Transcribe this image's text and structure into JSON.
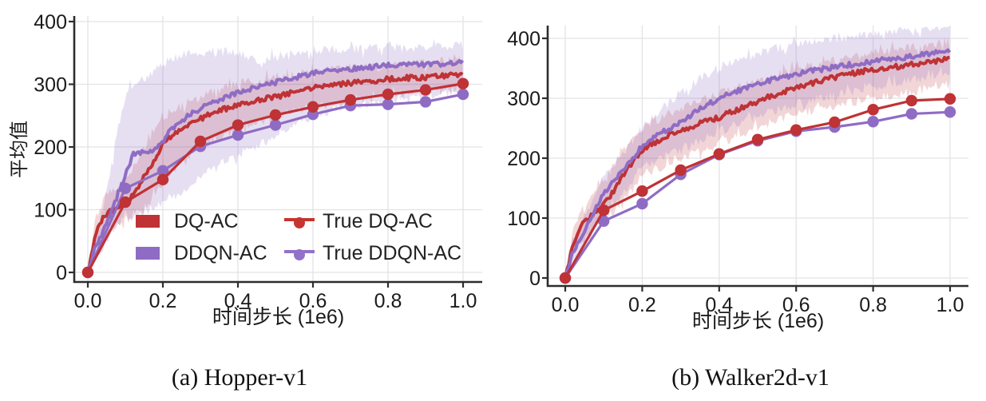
{
  "colors": {
    "red": "#bf3235",
    "purple": "#8f6cc4",
    "red_band_opacity": 0.2,
    "purple_band_opacity": 0.22,
    "grid": "#e3e3e7",
    "spine": "#2d2d2d",
    "text": "#1b1b1b"
  },
  "legend": {
    "entries": [
      {
        "label": "DQ-AC",
        "swatch": "patch",
        "color": "#bf3235"
      },
      {
        "label": "DDQN-AC",
        "swatch": "patch",
        "color": "#8f6cc4"
      },
      {
        "label": "True DQ-AC",
        "swatch": "line-marker",
        "color": "#c63430"
      },
      {
        "label": "True DDQN-AC",
        "swatch": "line-marker",
        "color": "#9271c9"
      }
    ]
  },
  "chart_data": [
    {
      "type": "line",
      "caption": "(a) Hopper-v1",
      "xlabel": "时间步长 (1e6)",
      "ylabel": "平均值",
      "xtick_labels": [
        "0.0",
        "0.2",
        "0.4",
        "0.6",
        "0.8",
        "1.0"
      ],
      "xtick_values": [
        0.0,
        0.2,
        0.4,
        0.6,
        0.8,
        1.0
      ],
      "ytick_values": [
        0,
        100,
        200,
        300,
        400
      ],
      "xlim": [
        -0.036,
        1.051
      ],
      "ylim": [
        -15,
        409
      ],
      "grid": true,
      "legend_position": "lower-right-inside",
      "series": [
        {
          "name": "DQ-AC",
          "kind": "band",
          "color_key": "red",
          "x": [
            0,
            0.02,
            0.04,
            0.06,
            0.08,
            0.1,
            0.12,
            0.15,
            0.17,
            0.2,
            0.22,
            0.25,
            0.3,
            0.35,
            0.4,
            0.45,
            0.5,
            0.55,
            0.6,
            0.65,
            0.7,
            0.75,
            0.8,
            0.85,
            0.9,
            0.95,
            1.0
          ],
          "mean": [
            0,
            60,
            88,
            97,
            103,
            112,
            122,
            152,
            172,
            205,
            216,
            228,
            245,
            258,
            267,
            274,
            280,
            287,
            294,
            298,
            302,
            305,
            308,
            310,
            311,
            313,
            316
          ],
          "upper": [
            3,
            85,
            115,
            128,
            138,
            150,
            165,
            195,
            218,
            246,
            257,
            266,
            280,
            292,
            300,
            306,
            311,
            316,
            320,
            323,
            326,
            328,
            330,
            332,
            334,
            336,
            340
          ],
          "lower": [
            -3,
            38,
            58,
            68,
            75,
            83,
            90,
            100,
            118,
            142,
            158,
            176,
            200,
            216,
            228,
            238,
            248,
            256,
            264,
            269,
            274,
            278,
            282,
            285,
            288,
            290,
            294
          ]
        },
        {
          "name": "DDQN-AC",
          "kind": "band",
          "color_key": "purple",
          "x": [
            0,
            0.02,
            0.04,
            0.06,
            0.08,
            0.1,
            0.12,
            0.15,
            0.17,
            0.2,
            0.22,
            0.25,
            0.3,
            0.35,
            0.4,
            0.45,
            0.5,
            0.55,
            0.6,
            0.65,
            0.7,
            0.75,
            0.8,
            0.85,
            0.9,
            0.95,
            1.0
          ],
          "mean": [
            0,
            40,
            65,
            90,
            125,
            155,
            188,
            192,
            191,
            210,
            226,
            242,
            262,
            276,
            287,
            295,
            303,
            311,
            318,
            322,
            325,
            327,
            330,
            331,
            332,
            333,
            335
          ],
          "upper": [
            3,
            60,
            100,
            160,
            230,
            280,
            300,
            310,
            318,
            332,
            340,
            346,
            351,
            352,
            350,
            336,
            344,
            351,
            354,
            356,
            356,
            357,
            358,
            358,
            359,
            360,
            362
          ],
          "lower": [
            -3,
            25,
            42,
            60,
            76,
            86,
            92,
            97,
            100,
            108,
            116,
            126,
            152,
            172,
            188,
            202,
            217,
            235,
            250,
            258,
            265,
            270,
            274,
            278,
            282,
            286,
            292
          ]
        },
        {
          "name": "True DQ-AC",
          "kind": "markers",
          "color_key": "red",
          "x": [
            0,
            0.1,
            0.2,
            0.3,
            0.4,
            0.5,
            0.6,
            0.7,
            0.8,
            0.9,
            1.0
          ],
          "values": [
            0,
            112,
            148,
            209,
            235,
            251,
            264,
            275,
            284,
            291,
            301
          ]
        },
        {
          "name": "True DDQN-AC",
          "kind": "markers",
          "color_key": "purple",
          "x": [
            0,
            0.1,
            0.2,
            0.3,
            0.4,
            0.5,
            0.6,
            0.7,
            0.8,
            0.9,
            1.0
          ],
          "values": [
            0,
            134,
            162,
            201,
            219,
            235,
            252,
            266,
            268,
            272,
            284
          ]
        }
      ]
    },
    {
      "type": "line",
      "caption": "(b) Walker2d-v1",
      "xlabel": "时间步长 (1e6)",
      "ylabel": "",
      "xtick_labels": [
        "0.0",
        "0.2",
        "0.4",
        "0.6",
        "0.8",
        "1.0"
      ],
      "xtick_values": [
        0.0,
        0.2,
        0.4,
        0.6,
        0.8,
        1.0
      ],
      "ytick_values": [
        0,
        100,
        200,
        300,
        400
      ],
      "xlim": [
        -0.046,
        1.048
      ],
      "ylim": [
        -13,
        421
      ],
      "grid": true,
      "series": [
        {
          "name": "DQ-AC",
          "kind": "band",
          "color_key": "red",
          "x": [
            0,
            0.02,
            0.04,
            0.06,
            0.08,
            0.1,
            0.13,
            0.15,
            0.18,
            0.2,
            0.25,
            0.3,
            0.35,
            0.4,
            0.45,
            0.5,
            0.55,
            0.6,
            0.65,
            0.7,
            0.75,
            0.8,
            0.85,
            0.9,
            0.95,
            1.0
          ],
          "mean": [
            0,
            55,
            85,
            100,
            112,
            122,
            148,
            170,
            198,
            215,
            232,
            246,
            258,
            268,
            282,
            295,
            307,
            318,
            327,
            335,
            342,
            348,
            352,
            356,
            361,
            367
          ],
          "upper": [
            3,
            75,
            110,
            130,
            148,
            162,
            190,
            215,
            238,
            250,
            268,
            283,
            296,
            308,
            320,
            330,
            340,
            350,
            356,
            362,
            368,
            375,
            380,
            385,
            390,
            396
          ],
          "lower": [
            -3,
            35,
            58,
            72,
            85,
            95,
            115,
            128,
            155,
            170,
            186,
            200,
            212,
            225,
            238,
            252,
            262,
            272,
            280,
            288,
            294,
            300,
            306,
            312,
            317,
            323
          ]
        },
        {
          "name": "DDQN-AC",
          "kind": "band",
          "color_key": "purple",
          "x": [
            0,
            0.02,
            0.04,
            0.06,
            0.08,
            0.1,
            0.13,
            0.15,
            0.18,
            0.2,
            0.25,
            0.3,
            0.35,
            0.4,
            0.45,
            0.5,
            0.55,
            0.6,
            0.65,
            0.7,
            0.75,
            0.8,
            0.85,
            0.9,
            0.95,
            1.0
          ],
          "mean": [
            0,
            42,
            68,
            92,
            118,
            140,
            165,
            180,
            205,
            220,
            242,
            260,
            283,
            300,
            313,
            325,
            333,
            340,
            347,
            352,
            357,
            362,
            366,
            370,
            374,
            379
          ],
          "upper": [
            3,
            58,
            90,
            118,
            145,
            168,
            192,
            208,
            235,
            252,
            282,
            310,
            332,
            350,
            363,
            375,
            383,
            390,
            395,
            400,
            404,
            408,
            412,
            415,
            418,
            421
          ],
          "lower": [
            -3,
            28,
            48,
            65,
            85,
            102,
            128,
            142,
            165,
            183,
            200,
            215,
            230,
            245,
            258,
            270,
            280,
            290,
            298,
            305,
            312,
            318,
            324,
            330,
            335,
            341
          ]
        },
        {
          "name": "True DQ-AC",
          "kind": "markers",
          "color_key": "red",
          "x": [
            0,
            0.1,
            0.2,
            0.3,
            0.4,
            0.5,
            0.6,
            0.7,
            0.8,
            0.9,
            1.0
          ],
          "values": [
            0,
            113,
            145,
            180,
            207,
            231,
            247,
            260,
            281,
            296,
            299
          ]
        },
        {
          "name": "True DDQN-AC",
          "kind": "markers",
          "color_key": "purple",
          "x": [
            0,
            0.1,
            0.2,
            0.3,
            0.4,
            0.5,
            0.6,
            0.7,
            0.8,
            0.9,
            1.0
          ],
          "values": [
            0,
            95,
            124,
            173,
            206,
            229,
            245,
            252,
            261,
            274,
            277
          ]
        }
      ]
    }
  ]
}
